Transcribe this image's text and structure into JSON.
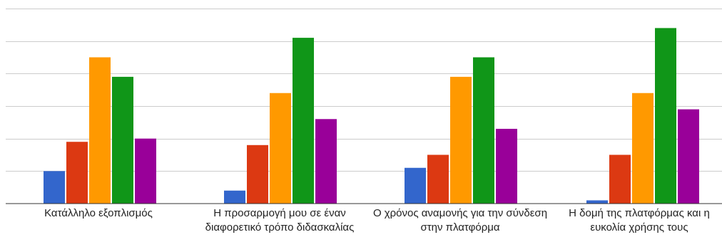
{
  "chart_data": {
    "type": "bar",
    "categories": [
      "Κατάλληλο εξοπλισμός",
      "Η προσαρμογή μου σε έναν διαφορετικό τρόπο διδασκαλίας",
      "Ο χρόνος αναμονής για την σύνδεση στην πλατφόρμα",
      "Η δομή της πλατφόρμας και η ευκολία χρήσης τους"
    ],
    "series": [
      {
        "color": "#3366cc",
        "values": [
          10,
          4,
          11,
          1
        ]
      },
      {
        "color": "#dc3912",
        "values": [
          19,
          18,
          15,
          15
        ]
      },
      {
        "color": "#ff9900",
        "values": [
          45,
          34,
          39,
          34
        ]
      },
      {
        "color": "#109618",
        "values": [
          39,
          51,
          45,
          54
        ]
      },
      {
        "color": "#990099",
        "values": [
          20,
          26,
          23,
          29
        ]
      }
    ],
    "ylim": [
      0,
      60
    ],
    "grid": true,
    "legend": "none",
    "title": "",
    "xlabel": "",
    "ylabel": ""
  }
}
